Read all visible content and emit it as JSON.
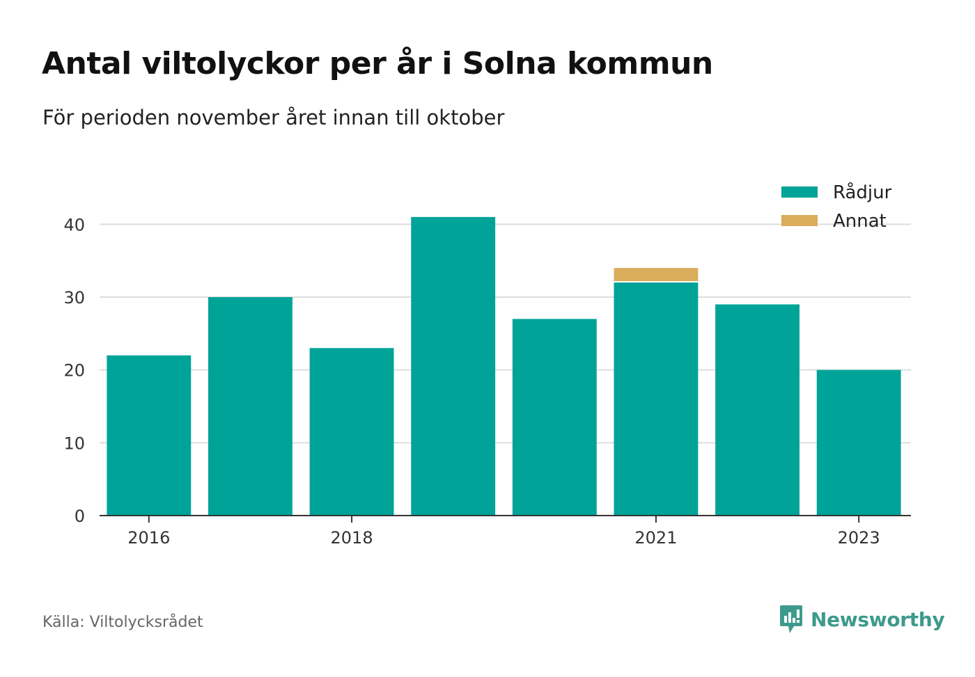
{
  "title": "Antal viltolyckor per år i Solna kommun",
  "subtitle": "För perioden november året innan till oktober",
  "source": "Källa: Viltolycksrådet",
  "brand": {
    "name": "Newsworthy",
    "icon": "newsworthy-logo-icon",
    "color": "#3d9a8c"
  },
  "chart_data": {
    "type": "bar",
    "stacked": true,
    "title": "Antal viltolyckor per år i Solna kommun",
    "subtitle": "För perioden november året innan till oktober",
    "xlabel": "",
    "ylabel": "",
    "x": [
      2016,
      2017,
      2018,
      2019,
      2020,
      2021,
      2022,
      2023
    ],
    "x_tick_labels": [
      "2016",
      "2018",
      "2021",
      "2023"
    ],
    "x_tick_values": [
      2016,
      2018,
      2021,
      2023
    ],
    "ylim": [
      0,
      45
    ],
    "y_ticks": [
      0,
      10,
      20,
      30,
      40
    ],
    "grid": true,
    "legend_position": "top-right",
    "series": [
      {
        "name": "Rådjur",
        "color": "#00a398",
        "values": [
          22,
          30,
          23,
          41,
          27,
          32,
          29,
          20
        ]
      },
      {
        "name": "Annat",
        "color": "#d9ad5b",
        "values": [
          0,
          0,
          0,
          0,
          0,
          2,
          0,
          0
        ]
      }
    ]
  }
}
